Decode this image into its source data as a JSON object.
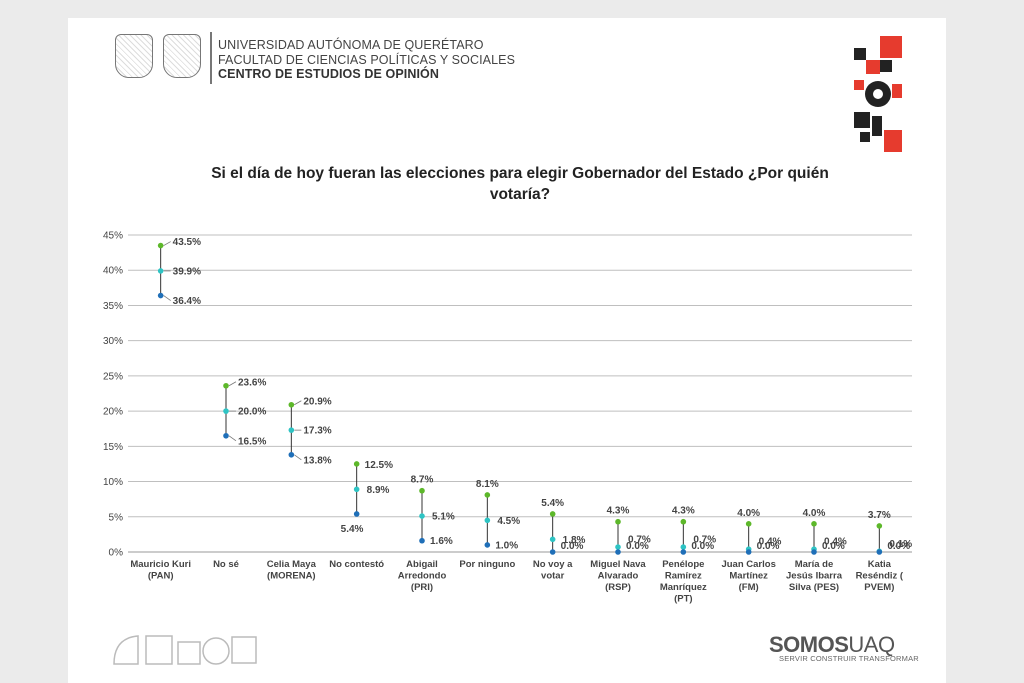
{
  "header": {
    "line1": "UNIVERSIDAD AUTÓNOMA DE QUERÉTARO",
    "line2": "FACULTAD DE CIENCIAS POLÍTICAS Y SOCIALES",
    "line3": "CENTRO DE ESTUDIOS DE OPINIÓN"
  },
  "footer": {
    "brand_bold": "SOMOS",
    "brand_light": "UAQ",
    "tagline": "SERVIR CONSTRUIR TRANSFORMAR"
  },
  "colors": {
    "high": "#5db82a",
    "mid": "#2ec4c4",
    "low": "#1f6fb8",
    "whisker": "#333333",
    "grid": "#bfbfbf",
    "accent": "#e63b2e"
  },
  "chart_data": {
    "type": "scatter",
    "title": "Si el día de hoy fueran las elecciones para elegir Gobernador del Estado ¿Por quién votaría?",
    "ylim": [
      0,
      45
    ],
    "yticks": [
      0,
      5,
      10,
      15,
      20,
      25,
      30,
      35,
      40,
      45
    ],
    "ytick_labels": [
      "0%",
      "5%",
      "10%",
      "15%",
      "20%",
      "25%",
      "30%",
      "35%",
      "40%",
      "45%"
    ],
    "grid": true,
    "categories": [
      [
        "Mauricio Kuri",
        "(PAN)"
      ],
      [
        "No sé"
      ],
      [
        "Celia Maya",
        "(MORENA)"
      ],
      [
        "No contestó"
      ],
      [
        "Abigail",
        "Arredondo",
        "(PRI)"
      ],
      [
        "Por ninguno"
      ],
      [
        "No voy a",
        "votar"
      ],
      [
        "Miguel Nava",
        "Alvarado",
        "(RSP)"
      ],
      [
        "Penélope",
        "Ramírez",
        "Manríquez",
        "(PT)"
      ],
      [
        "Juan Carlos",
        "Martínez",
        "(FM)"
      ],
      [
        "María de",
        "Jesús Ibarra",
        "Silva (PES)"
      ],
      [
        "Katia",
        "Reséndiz (",
        "PVEM)"
      ]
    ],
    "series": [
      {
        "values": [
          43.5,
          23.6,
          20.9,
          12.5,
          8.7,
          8.1,
          5.4,
          4.3,
          4.3,
          4.0,
          4.0,
          3.7
        ],
        "labels": [
          "43.5%",
          "23.6%",
          "20.9%",
          "12.5%",
          "8.7%",
          "8.1%",
          "5.4%",
          "4.3%",
          "4.3%",
          "4.0%",
          "4.0%",
          "3.7%"
        ]
      },
      {
        "values": [
          39.9,
          20.0,
          17.3,
          8.9,
          5.1,
          4.5,
          1.8,
          0.7,
          0.7,
          0.4,
          0.4,
          0.1
        ],
        "labels": [
          "39.9%",
          "20.0%",
          "17.3%",
          "8.9%",
          "5.1%",
          "4.5%",
          "1.8%",
          "0.7%",
          "0.7%",
          "0.4%",
          "0.4%",
          "0.1%"
        ]
      },
      {
        "values": [
          36.4,
          16.5,
          13.8,
          5.4,
          1.6,
          1.0,
          0.0,
          0.0,
          0.0,
          0.0,
          0.0,
          0.0
        ],
        "labels": [
          "36.4%",
          "16.5%",
          "13.8%",
          "5.4%",
          "1.6%",
          "1.0%",
          "0.0%",
          "0.0%",
          "0.0%",
          "0.0%",
          "0.0%",
          "0.0%"
        ]
      }
    ]
  }
}
